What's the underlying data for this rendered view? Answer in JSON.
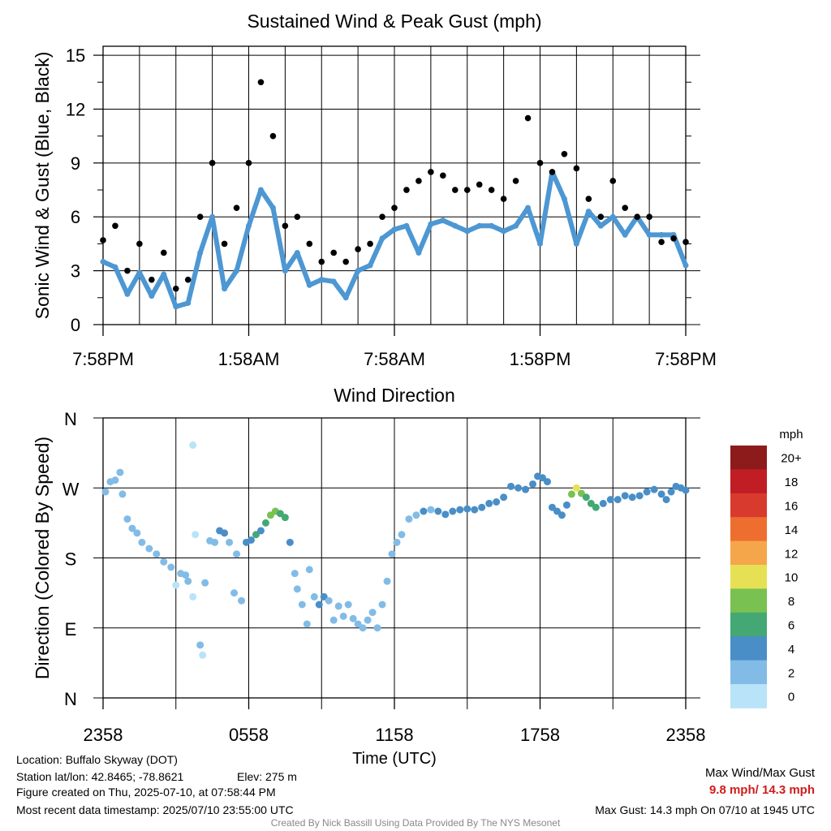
{
  "chart_data": [
    {
      "type": "scatter",
      "title": "Sustained Wind & Peak Gust (mph)",
      "ylabel": "Sonic Wind & Gust (Blue, Black)",
      "xlabel": "",
      "ylim": [
        0,
        15.5
      ],
      "yticks": [
        0,
        3,
        6,
        9,
        12,
        15
      ],
      "xlim": [
        0,
        24
      ],
      "xtick_positions": [
        0,
        6,
        12,
        18,
        24
      ],
      "xtick_labels": [
        "7:58PM",
        "1:58AM",
        "7:58AM",
        "1:58PM",
        "7:58PM"
      ],
      "grid": true,
      "series": [
        {
          "color": "#4d97d3",
          "x": [
            0,
            0.5,
            1,
            1.5,
            2,
            2.5,
            3,
            3.5,
            4,
            4.5,
            5,
            5.5,
            6,
            6.5,
            7,
            7.5,
            8,
            8.5,
            9,
            9.5,
            10,
            10.5,
            11,
            11.5,
            12,
            12.5,
            13,
            13.5,
            14,
            14.5,
            15,
            15.5,
            16,
            16.5,
            17,
            17.5,
            18,
            18.5,
            19,
            19.5,
            20,
            20.5,
            21,
            21.5,
            22,
            22.5,
            23,
            23.5,
            24
          ],
          "values": [
            3.5,
            3.2,
            1.7,
            2.9,
            1.6,
            2.8,
            1.0,
            1.2,
            4.0,
            6.0,
            2.0,
            3.0,
            5.5,
            7.5,
            6.5,
            3.0,
            4.0,
            2.2,
            2.5,
            2.4,
            1.5,
            3.0,
            3.3,
            4.8,
            5.3,
            5.5,
            4.0,
            5.6,
            5.8,
            5.5,
            5.2,
            5.5,
            5.5,
            5.2,
            5.5,
            6.5,
            4.5,
            8.5,
            7.0,
            4.5,
            6.3,
            5.5,
            6.0,
            5.0,
            6.0,
            5.0,
            5.0,
            5.0,
            3.3
          ]
        },
        {
          "color": "#000000",
          "x": [
            0,
            0.5,
            1,
            1.5,
            2,
            2.5,
            3,
            3.5,
            4,
            4.5,
            5,
            5.5,
            6,
            6.5,
            7,
            7.5,
            8,
            8.5,
            9,
            9.5,
            10,
            10.5,
            11,
            11.5,
            12,
            12.5,
            13,
            13.5,
            14,
            14.5,
            15,
            15.5,
            16,
            16.5,
            17,
            17.5,
            18,
            18.5,
            19,
            19.5,
            20,
            20.5,
            21,
            21.5,
            22,
            22.5,
            23,
            23.5,
            24
          ],
          "values": [
            4.7,
            5.5,
            3.0,
            4.5,
            2.5,
            4.0,
            2.0,
            2.5,
            6.0,
            9.0,
            4.5,
            6.5,
            9.0,
            13.5,
            10.5,
            5.5,
            6.0,
            4.5,
            3.5,
            4.0,
            3.5,
            4.2,
            4.5,
            6.0,
            6.5,
            7.5,
            8.0,
            8.5,
            8.3,
            7.5,
            7.5,
            7.8,
            7.5,
            7.0,
            8.0,
            11.5,
            9.0,
            8.5,
            9.5,
            8.7,
            7.0,
            6.0,
            8.0,
            6.5,
            6.0,
            6.0,
            4.6,
            4.8,
            4.6
          ]
        }
      ]
    },
    {
      "type": "scatter",
      "title": "Wind Direction",
      "ylabel": "Direction (Colored By Speed)",
      "xlabel": "Time (UTC)",
      "ylim": [
        0,
        360
      ],
      "ytick_positions": [
        0,
        90,
        180,
        270,
        360
      ],
      "ytick_labels": [
        "N",
        "E",
        "S",
        "W",
        "N"
      ],
      "xlim": [
        0,
        24
      ],
      "xtick_positions": [
        0,
        6,
        12,
        18,
        24
      ],
      "xtick_labels": [
        "2358",
        "0558",
        "1158",
        "1758",
        "2358"
      ],
      "grid": true,
      "legend_title": "mph",
      "legend_labels": [
        "20+",
        "18",
        "16",
        "14",
        "12",
        "10",
        "8",
        "6",
        "4",
        "2",
        "0"
      ],
      "legend_colors": [
        "#8e1b1b",
        "#c01d24",
        "#d93a2e",
        "#ee6e2f",
        "#f5a64a",
        "#e6e055",
        "#79c150",
        "#44a874",
        "#4a8ec8",
        "#82bce6",
        "#b9e3f8"
      ],
      "points": [
        {
          "x": 0.1,
          "dir": 265,
          "speed": 3
        },
        {
          "x": 0.3,
          "dir": 278,
          "speed": 3
        },
        {
          "x": 0.5,
          "dir": 280,
          "speed": 3
        },
        {
          "x": 0.7,
          "dir": 290,
          "speed": 2
        },
        {
          "x": 0.8,
          "dir": 262,
          "speed": 2
        },
        {
          "x": 1.0,
          "dir": 230,
          "speed": 2
        },
        {
          "x": 1.2,
          "dir": 218,
          "speed": 2
        },
        {
          "x": 1.4,
          "dir": 212,
          "speed": 2
        },
        {
          "x": 1.6,
          "dir": 200,
          "speed": 3
        },
        {
          "x": 1.9,
          "dir": 192,
          "speed": 2
        },
        {
          "x": 2.2,
          "dir": 185,
          "speed": 3
        },
        {
          "x": 2.5,
          "dir": 175,
          "speed": 2
        },
        {
          "x": 2.8,
          "dir": 168,
          "speed": 2
        },
        {
          "x": 3.0,
          "dir": 145,
          "speed": 1
        },
        {
          "x": 3.2,
          "dir": 160,
          "speed": 3
        },
        {
          "x": 3.4,
          "dir": 158,
          "speed": 2
        },
        {
          "x": 3.5,
          "dir": 150,
          "speed": 2
        },
        {
          "x": 3.7,
          "dir": 130,
          "speed": 1
        },
        {
          "x": 3.7,
          "dir": 325,
          "speed": 1
        },
        {
          "x": 3.8,
          "dir": 210,
          "speed": 1
        },
        {
          "x": 4.0,
          "dir": 68,
          "speed": 2
        },
        {
          "x": 4.1,
          "dir": 55,
          "speed": 1
        },
        {
          "x": 4.2,
          "dir": 148,
          "speed": 2
        },
        {
          "x": 4.4,
          "dir": 202,
          "speed": 2
        },
        {
          "x": 4.6,
          "dir": 200,
          "speed": 2
        },
        {
          "x": 4.8,
          "dir": 215,
          "speed": 4
        },
        {
          "x": 5.0,
          "dir": 212,
          "speed": 5
        },
        {
          "x": 5.2,
          "dir": 200,
          "speed": 2
        },
        {
          "x": 5.4,
          "dir": 135,
          "speed": 2
        },
        {
          "x": 5.5,
          "dir": 185,
          "speed": 3
        },
        {
          "x": 5.7,
          "dir": 125,
          "speed": 2
        },
        {
          "x": 5.9,
          "dir": 200,
          "speed": 4
        },
        {
          "x": 6.1,
          "dir": 203,
          "speed": 5
        },
        {
          "x": 6.3,
          "dir": 210,
          "speed": 6
        },
        {
          "x": 6.5,
          "dir": 215,
          "speed": 4
        },
        {
          "x": 6.7,
          "dir": 225,
          "speed": 6
        },
        {
          "x": 6.9,
          "dir": 235,
          "speed": 8
        },
        {
          "x": 7.1,
          "dir": 240,
          "speed": 8
        },
        {
          "x": 7.3,
          "dir": 237,
          "speed": 7
        },
        {
          "x": 7.5,
          "dir": 232,
          "speed": 6
        },
        {
          "x": 7.7,
          "dir": 200,
          "speed": 4
        },
        {
          "x": 7.9,
          "dir": 160,
          "speed": 3
        },
        {
          "x": 8.0,
          "dir": 140,
          "speed": 2
        },
        {
          "x": 8.2,
          "dir": 120,
          "speed": 2
        },
        {
          "x": 8.4,
          "dir": 95,
          "speed": 2
        },
        {
          "x": 8.5,
          "dir": 165,
          "speed": 3
        },
        {
          "x": 8.7,
          "dir": 130,
          "speed": 3
        },
        {
          "x": 8.9,
          "dir": 120,
          "speed": 4
        },
        {
          "x": 9.1,
          "dir": 130,
          "speed": 4
        },
        {
          "x": 9.3,
          "dir": 125,
          "speed": 3
        },
        {
          "x": 9.5,
          "dir": 100,
          "speed": 2
        },
        {
          "x": 9.7,
          "dir": 118,
          "speed": 2
        },
        {
          "x": 9.9,
          "dir": 105,
          "speed": 3
        },
        {
          "x": 10.1,
          "dir": 120,
          "speed": 2
        },
        {
          "x": 10.3,
          "dir": 102,
          "speed": 3
        },
        {
          "x": 10.5,
          "dir": 95,
          "speed": 2
        },
        {
          "x": 10.7,
          "dir": 90,
          "speed": 3
        },
        {
          "x": 10.9,
          "dir": 100,
          "speed": 2
        },
        {
          "x": 11.1,
          "dir": 110,
          "speed": 2
        },
        {
          "x": 11.3,
          "dir": 90,
          "speed": 2
        },
        {
          "x": 11.5,
          "dir": 120,
          "speed": 2
        },
        {
          "x": 11.7,
          "dir": 150,
          "speed": 2
        },
        {
          "x": 11.9,
          "dir": 185,
          "speed": 2
        },
        {
          "x": 12.1,
          "dir": 200,
          "speed": 2
        },
        {
          "x": 12.3,
          "dir": 210,
          "speed": 2
        },
        {
          "x": 12.6,
          "dir": 230,
          "speed": 2
        },
        {
          "x": 12.9,
          "dir": 235,
          "speed": 3
        },
        {
          "x": 13.2,
          "dir": 240,
          "speed": 4
        },
        {
          "x": 13.5,
          "dir": 242,
          "speed": 3
        },
        {
          "x": 13.8,
          "dir": 240,
          "speed": 4
        },
        {
          "x": 14.1,
          "dir": 236,
          "speed": 4
        },
        {
          "x": 14.4,
          "dir": 240,
          "speed": 5
        },
        {
          "x": 14.7,
          "dir": 242,
          "speed": 4
        },
        {
          "x": 15.0,
          "dir": 243,
          "speed": 5
        },
        {
          "x": 15.3,
          "dir": 242,
          "speed": 5
        },
        {
          "x": 15.6,
          "dir": 245,
          "speed": 5
        },
        {
          "x": 15.9,
          "dir": 250,
          "speed": 5
        },
        {
          "x": 16.2,
          "dir": 252,
          "speed": 5
        },
        {
          "x": 16.5,
          "dir": 258,
          "speed": 5
        },
        {
          "x": 16.8,
          "dir": 272,
          "speed": 4
        },
        {
          "x": 17.1,
          "dir": 270,
          "speed": 4
        },
        {
          "x": 17.4,
          "dir": 268,
          "speed": 5
        },
        {
          "x": 17.7,
          "dir": 275,
          "speed": 5
        },
        {
          "x": 17.9,
          "dir": 285,
          "speed": 4
        },
        {
          "x": 18.1,
          "dir": 283,
          "speed": 5
        },
        {
          "x": 18.3,
          "dir": 278,
          "speed": 4
        },
        {
          "x": 18.5,
          "dir": 245,
          "speed": 4
        },
        {
          "x": 18.7,
          "dir": 240,
          "speed": 4
        },
        {
          "x": 18.9,
          "dir": 235,
          "speed": 4
        },
        {
          "x": 19.1,
          "dir": 248,
          "speed": 5
        },
        {
          "x": 19.3,
          "dir": 262,
          "speed": 8
        },
        {
          "x": 19.5,
          "dir": 270,
          "speed": 10
        },
        {
          "x": 19.7,
          "dir": 263,
          "speed": 8
        },
        {
          "x": 19.9,
          "dir": 258,
          "speed": 7
        },
        {
          "x": 20.1,
          "dir": 250,
          "speed": 6
        },
        {
          "x": 20.3,
          "dir": 245,
          "speed": 6
        },
        {
          "x": 20.6,
          "dir": 250,
          "speed": 5
        },
        {
          "x": 20.9,
          "dir": 255,
          "speed": 5
        },
        {
          "x": 21.2,
          "dir": 255,
          "speed": 5
        },
        {
          "x": 21.5,
          "dir": 260,
          "speed": 5
        },
        {
          "x": 21.8,
          "dir": 258,
          "speed": 5
        },
        {
          "x": 22.1,
          "dir": 260,
          "speed": 5
        },
        {
          "x": 22.4,
          "dir": 265,
          "speed": 5
        },
        {
          "x": 22.7,
          "dir": 268,
          "speed": 4
        },
        {
          "x": 23.0,
          "dir": 262,
          "speed": 5
        },
        {
          "x": 23.2,
          "dir": 255,
          "speed": 4
        },
        {
          "x": 23.4,
          "dir": 265,
          "speed": 4
        },
        {
          "x": 23.6,
          "dir": 272,
          "speed": 4
        },
        {
          "x": 23.8,
          "dir": 270,
          "speed": 4
        },
        {
          "x": 24.0,
          "dir": 267,
          "speed": 4
        }
      ]
    }
  ],
  "footer": {
    "location": "Location: Buffalo Skyway (DOT)",
    "latlon": "Station lat/lon: 42.8465; -78.8621",
    "elev": "Elev: 275 m",
    "created": "Figure created on Thu, 2025-07-10, at 07:58:44 PM",
    "recent": "Most recent data timestamp: 2025/07/10 23:55:00 UTC",
    "max_title": "Max Wind/Max Gust",
    "max_values": "9.8 mph/ 14.3 mph",
    "max_gust": "Max Gust: 14.3 mph On 07/10 at 1945 UTC",
    "credit": "Created By Nick Bassill Using Data Provided By The NYS Mesonet"
  }
}
